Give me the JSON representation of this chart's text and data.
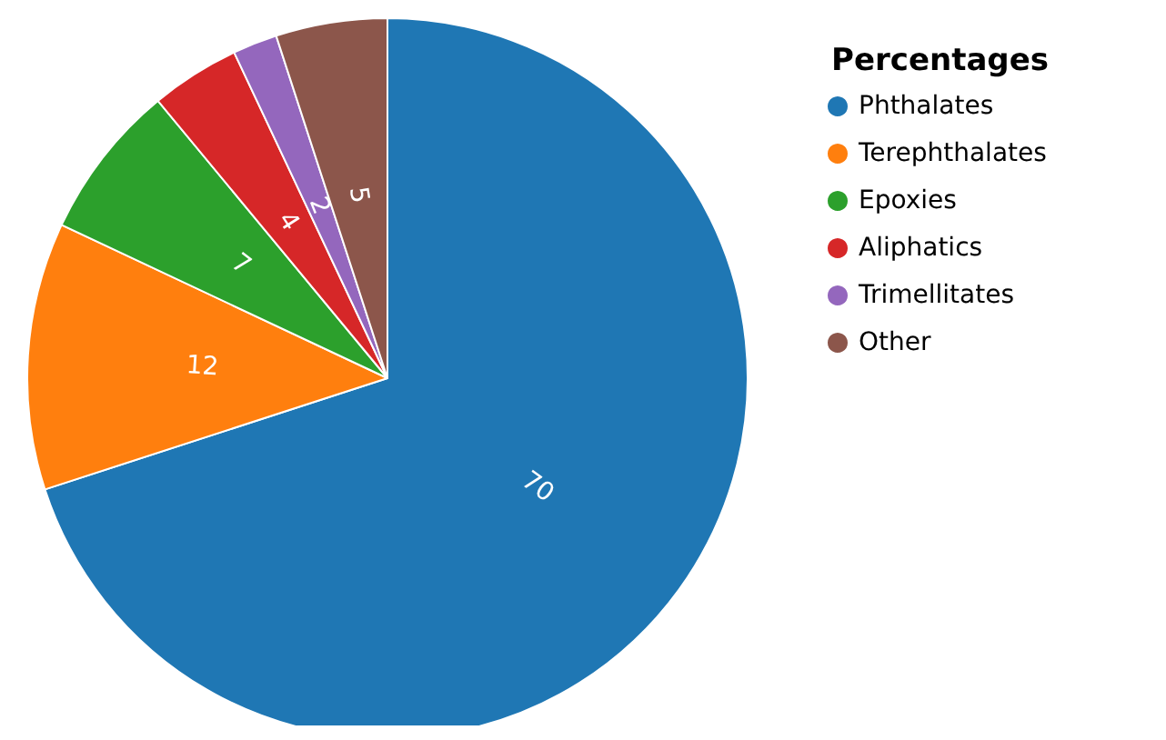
{
  "chart_data": {
    "type": "pie",
    "legend_title": "Percentages",
    "categories": [
      "Phthalates",
      "Terephthalates",
      "Epoxies",
      "Aliphatics",
      "Trimellitates",
      "Other"
    ],
    "values": [
      70,
      12,
      7,
      4,
      2,
      5
    ],
    "colors": [
      "#1f77b4",
      "#ff7f0e",
      "#2ca02c",
      "#d62728",
      "#9467bd",
      "#8c564b"
    ],
    "data_labels": true,
    "legend": "top right"
  }
}
